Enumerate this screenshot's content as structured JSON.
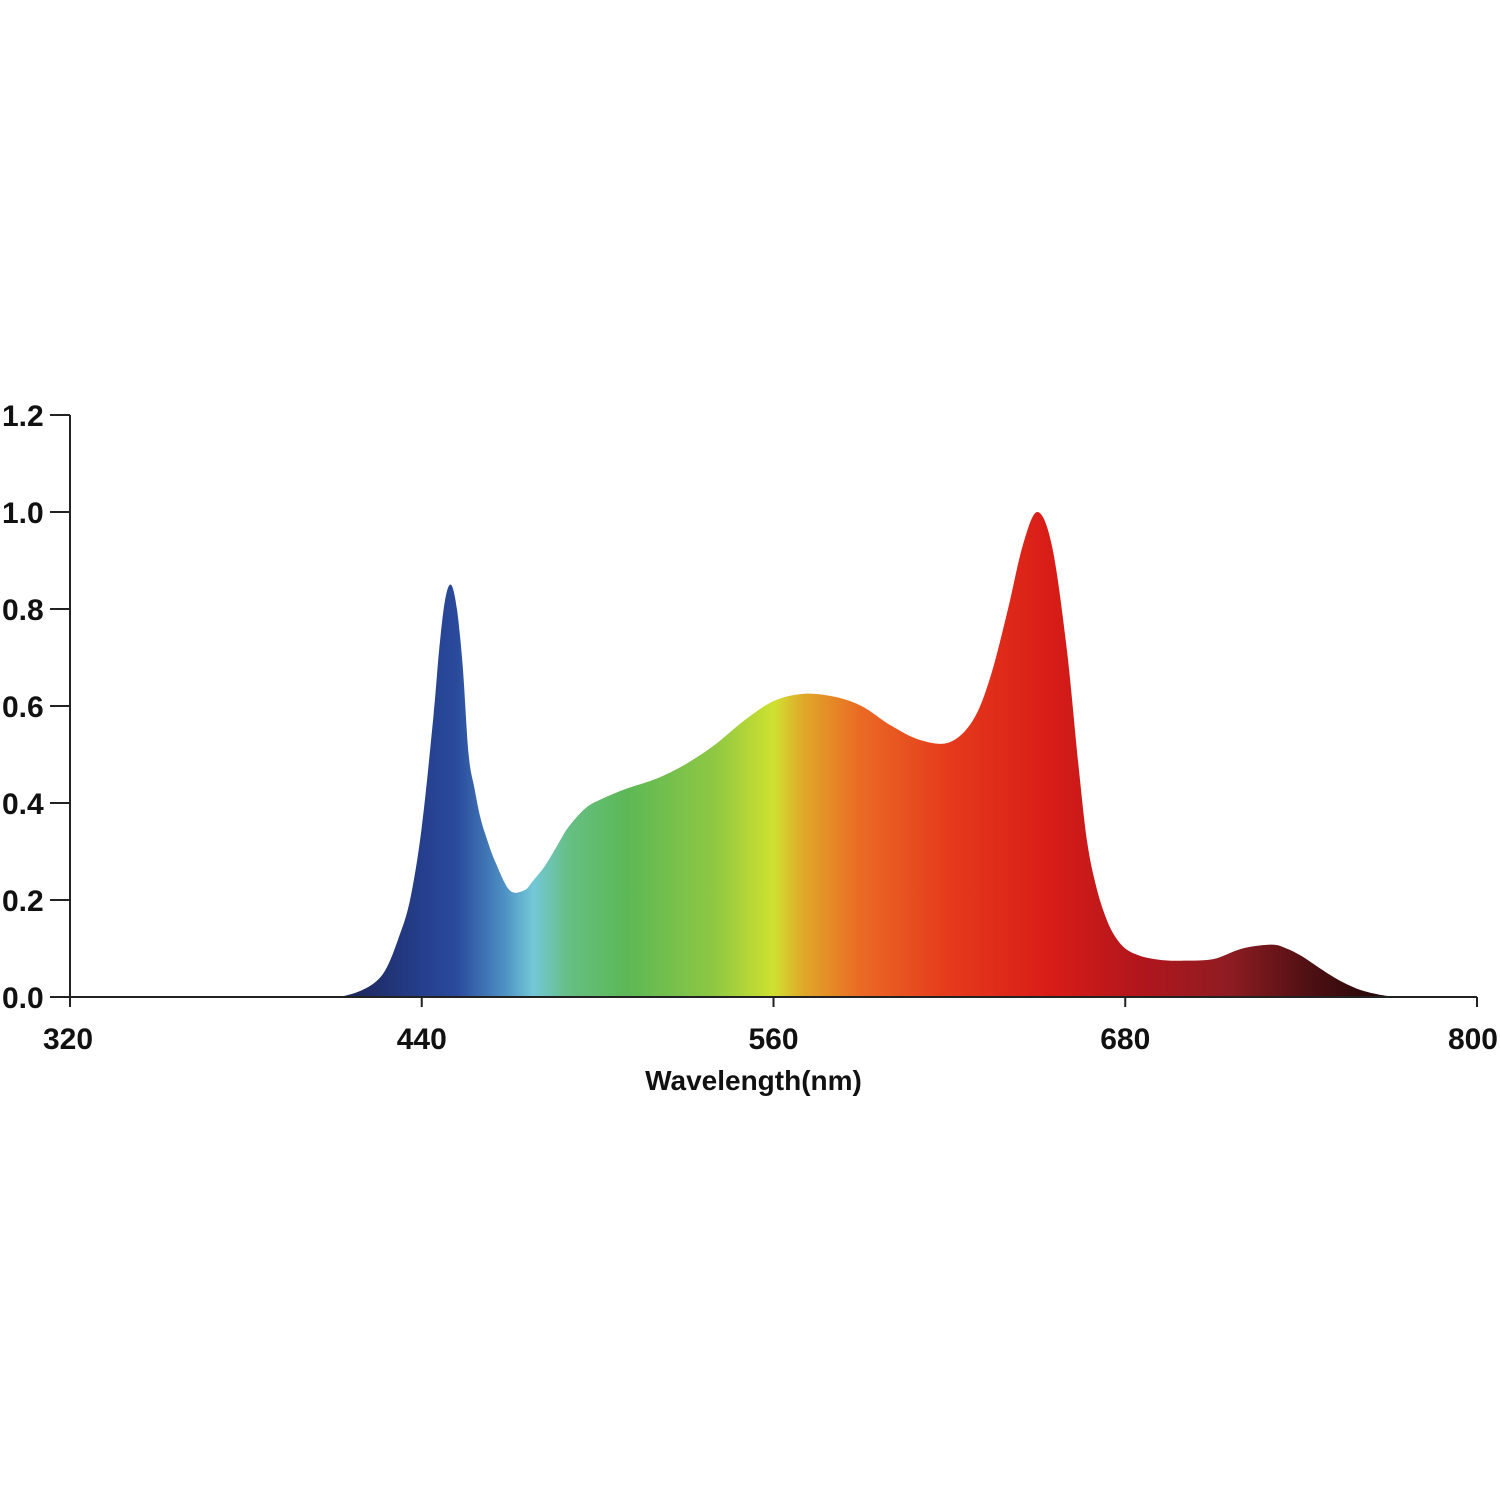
{
  "chart_data": {
    "type": "area",
    "title": "",
    "xlabel": "Wavelength(nm)",
    "ylabel": "",
    "xlim": [
      320,
      800
    ],
    "ylim": [
      0.0,
      1.2
    ],
    "x_ticks": [
      320,
      440,
      560,
      680,
      800
    ],
    "x_tick_labels": [
      "320",
      "440",
      "560",
      "680",
      "800"
    ],
    "y_ticks": [
      0.0,
      0.2,
      0.4,
      0.6,
      0.8,
      1.0,
      1.2
    ],
    "y_tick_labels": [
      "0.0",
      "0.2",
      "0.4",
      "0.6",
      "0.8",
      "1.0",
      "1.2"
    ],
    "grid": false,
    "legend": "none",
    "series": [
      {
        "x": [
          412,
          418,
          424,
          428,
          432,
          436,
          440,
          444,
          446,
          448,
          450,
          452,
          454,
          456,
          458,
          460,
          462,
          465,
          470,
          475,
          478,
          482,
          486,
          490,
          496,
          502,
          510,
          520,
          530,
          540,
          550,
          560,
          570,
          580,
          590,
          600,
          610,
          620,
          628,
          634,
          640,
          645,
          650,
          655,
          660,
          664,
          667,
          670,
          673,
          676,
          680,
          685,
          690,
          695,
          700,
          710,
          720,
          730,
          735,
          740,
          745,
          750,
          755,
          760,
          765,
          770,
          778
        ],
        "y": [
          0.0,
          0.01,
          0.03,
          0.06,
          0.12,
          0.2,
          0.35,
          0.58,
          0.72,
          0.82,
          0.85,
          0.8,
          0.68,
          0.5,
          0.43,
          0.37,
          0.33,
          0.28,
          0.22,
          0.22,
          0.24,
          0.27,
          0.31,
          0.35,
          0.39,
          0.41,
          0.43,
          0.45,
          0.48,
          0.52,
          0.57,
          0.61,
          0.625,
          0.62,
          0.6,
          0.56,
          0.53,
          0.525,
          0.57,
          0.66,
          0.8,
          0.93,
          1.0,
          0.93,
          0.72,
          0.48,
          0.32,
          0.23,
          0.17,
          0.13,
          0.1,
          0.085,
          0.078,
          0.075,
          0.075,
          0.078,
          0.1,
          0.108,
          0.1,
          0.085,
          0.065,
          0.045,
          0.028,
          0.015,
          0.007,
          0.002,
          0.0
        ]
      }
    ],
    "gradient_colors": [
      {
        "wavelength": 412,
        "color": "#1b2352"
      },
      {
        "wavelength": 440,
        "color": "#253f8d"
      },
      {
        "wavelength": 452,
        "color": "#2a4a9c"
      },
      {
        "wavelength": 468,
        "color": "#4d8fc3"
      },
      {
        "wavelength": 478,
        "color": "#72c8d8"
      },
      {
        "wavelength": 490,
        "color": "#66bf84"
      },
      {
        "wavelength": 510,
        "color": "#5cb856"
      },
      {
        "wavelength": 540,
        "color": "#8fc843"
      },
      {
        "wavelength": 560,
        "color": "#cfe130"
      },
      {
        "wavelength": 570,
        "color": "#e0a929"
      },
      {
        "wavelength": 590,
        "color": "#ea6924"
      },
      {
        "wavelength": 620,
        "color": "#e53a1c"
      },
      {
        "wavelength": 655,
        "color": "#d81c17"
      },
      {
        "wavelength": 685,
        "color": "#b1161c"
      },
      {
        "wavelength": 715,
        "color": "#8f1c22"
      },
      {
        "wavelength": 745,
        "color": "#4a0f12"
      },
      {
        "wavelength": 778,
        "color": "#150405"
      }
    ]
  }
}
